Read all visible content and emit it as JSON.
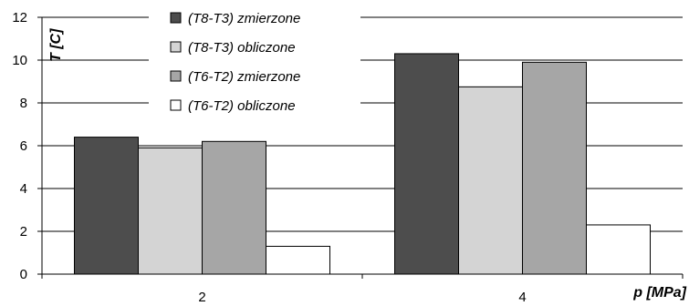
{
  "chart_data": {
    "type": "bar",
    "categories": [
      "2",
      "4"
    ],
    "series": [
      {
        "name": "(T8-T3) zmierzone",
        "values": [
          6.4,
          10.3
        ],
        "color": "#4d4d4d"
      },
      {
        "name": "(T8-T3) obliczone",
        "values": [
          5.9,
          8.75
        ],
        "color": "#d4d4d4"
      },
      {
        "name": "(T6-T2) zmierzone",
        "values": [
          6.2,
          9.9
        ],
        "color": "#a6a6a6"
      },
      {
        "name": "(T6-T2) obliczone",
        "values": [
          1.3,
          2.3
        ],
        "color": "#ffffff"
      }
    ],
    "xlabel": "p [MPa]",
    "ylabel": "T [C]",
    "ylim": [
      0,
      12
    ],
    "yticks": [
      0,
      2,
      4,
      6,
      8,
      10,
      12
    ],
    "grid": true,
    "legend_position": "top-center"
  }
}
